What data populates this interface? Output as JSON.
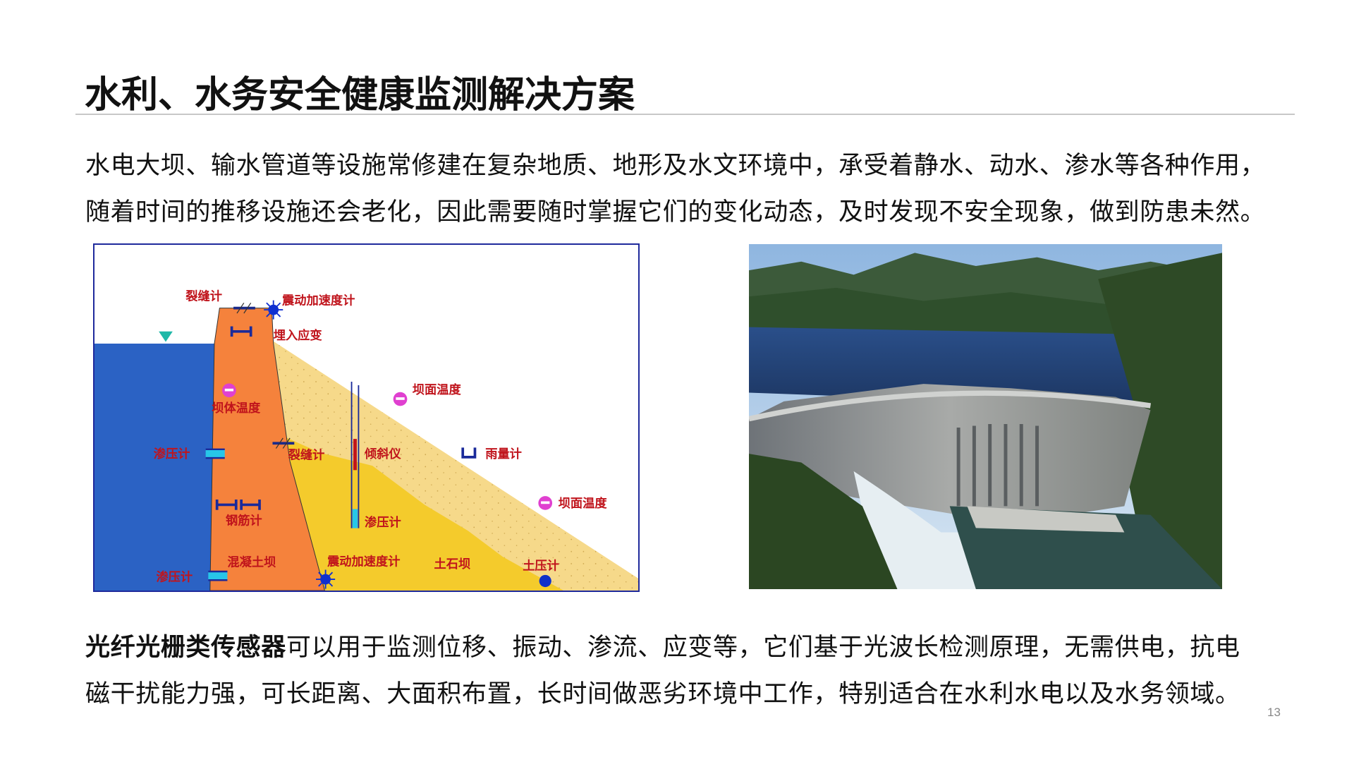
{
  "title": "水利、水务安全健康监测解决方案",
  "intro": {
    "lines": [
      "水电大坝、输水管道等设施常修建在复杂地质、地形及水文环境中，承受着静水、动水、渗水等各种作用，",
      "随着时间的推移设施还会老化，因此需要随时掌握它们的变化动态，及时发现不安全现象，做到防患未然。"
    ]
  },
  "diagram": {
    "labels": {
      "crack_top": "裂缝计",
      "vib_top": "震动加速度计",
      "embedded_strain": "埋入应变",
      "body_temp": "坝体温度",
      "surface_temp_1": "坝面温度",
      "piezo_left_1": "渗压计",
      "crack_mid": "裂缝计",
      "inclinometer": "倾斜仪",
      "rain_gauge": "雨量计",
      "surface_temp_2": "坝面温度",
      "rebar": "钢筋计",
      "piezo_mid": "渗压计",
      "concrete_dam": "混凝土坝",
      "vib_bottom": "震动加速度计",
      "earth_rock_dam": "土石坝",
      "earth_pressure": "土压计",
      "piezo_left_2": "渗压计"
    },
    "colors": {
      "water": "#2b62c4",
      "dam": "#f5823c",
      "sand_light": "#f6d98a",
      "sand_dark": "#f4cb2c",
      "label": "#c0141c",
      "border": "#1f2a9c"
    }
  },
  "summary": {
    "highlight": "光纤光栅类传感器",
    "line1_rest": "可以用于监测位移、振动、渗流、应变等，它们基于光波长检测原理，无需供电，抗电",
    "line2": "磁干扰能力强，可长距离、大面积布置，长时间做恶劣环境中工作，特别适合在水利水电以及水务领域。"
  },
  "page_number": "13"
}
